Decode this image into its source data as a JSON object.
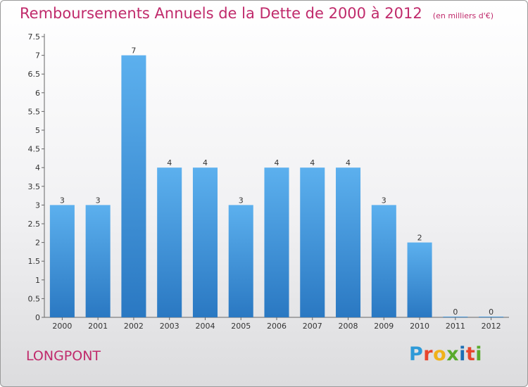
{
  "page": {
    "title": "Remboursements Annuels de la Dette de 2000 à 2012",
    "unit": "(en milliers d'€)",
    "city": "LONGPONT",
    "logo": {
      "text": "Proxiti",
      "colors": [
        "#2e9ad8",
        "#e8452c",
        "#f0b21a",
        "#5aaa2c",
        "#1d6fb5",
        "#e8452c",
        "#5aaa2c"
      ]
    }
  },
  "chart_data": {
    "type": "bar",
    "categories": [
      "2000",
      "2001",
      "2002",
      "2003",
      "2004",
      "2005",
      "2006",
      "2007",
      "2008",
      "2009",
      "2010",
      "2011",
      "2012"
    ],
    "values": [
      3,
      3,
      7,
      4,
      4,
      3,
      4,
      4,
      4,
      3,
      2,
      0,
      0
    ],
    "value_labels": [
      "3",
      "3",
      "7",
      "4",
      "4",
      "3",
      "4",
      "4",
      "4",
      "3",
      "2",
      "0",
      "0"
    ],
    "title": "Remboursements Annuels de la Dette de 2000 à 2012",
    "ylim": [
      0,
      7.5
    ],
    "yticks": [
      "0",
      "0.5",
      "1",
      "1.5",
      "2",
      "2.5",
      "3",
      "3.5",
      "4",
      "4.5",
      "5",
      "5.5",
      "6",
      "6.5",
      "7",
      "7.5"
    ],
    "bar_color": "#3d8fd6",
    "grid": false
  }
}
